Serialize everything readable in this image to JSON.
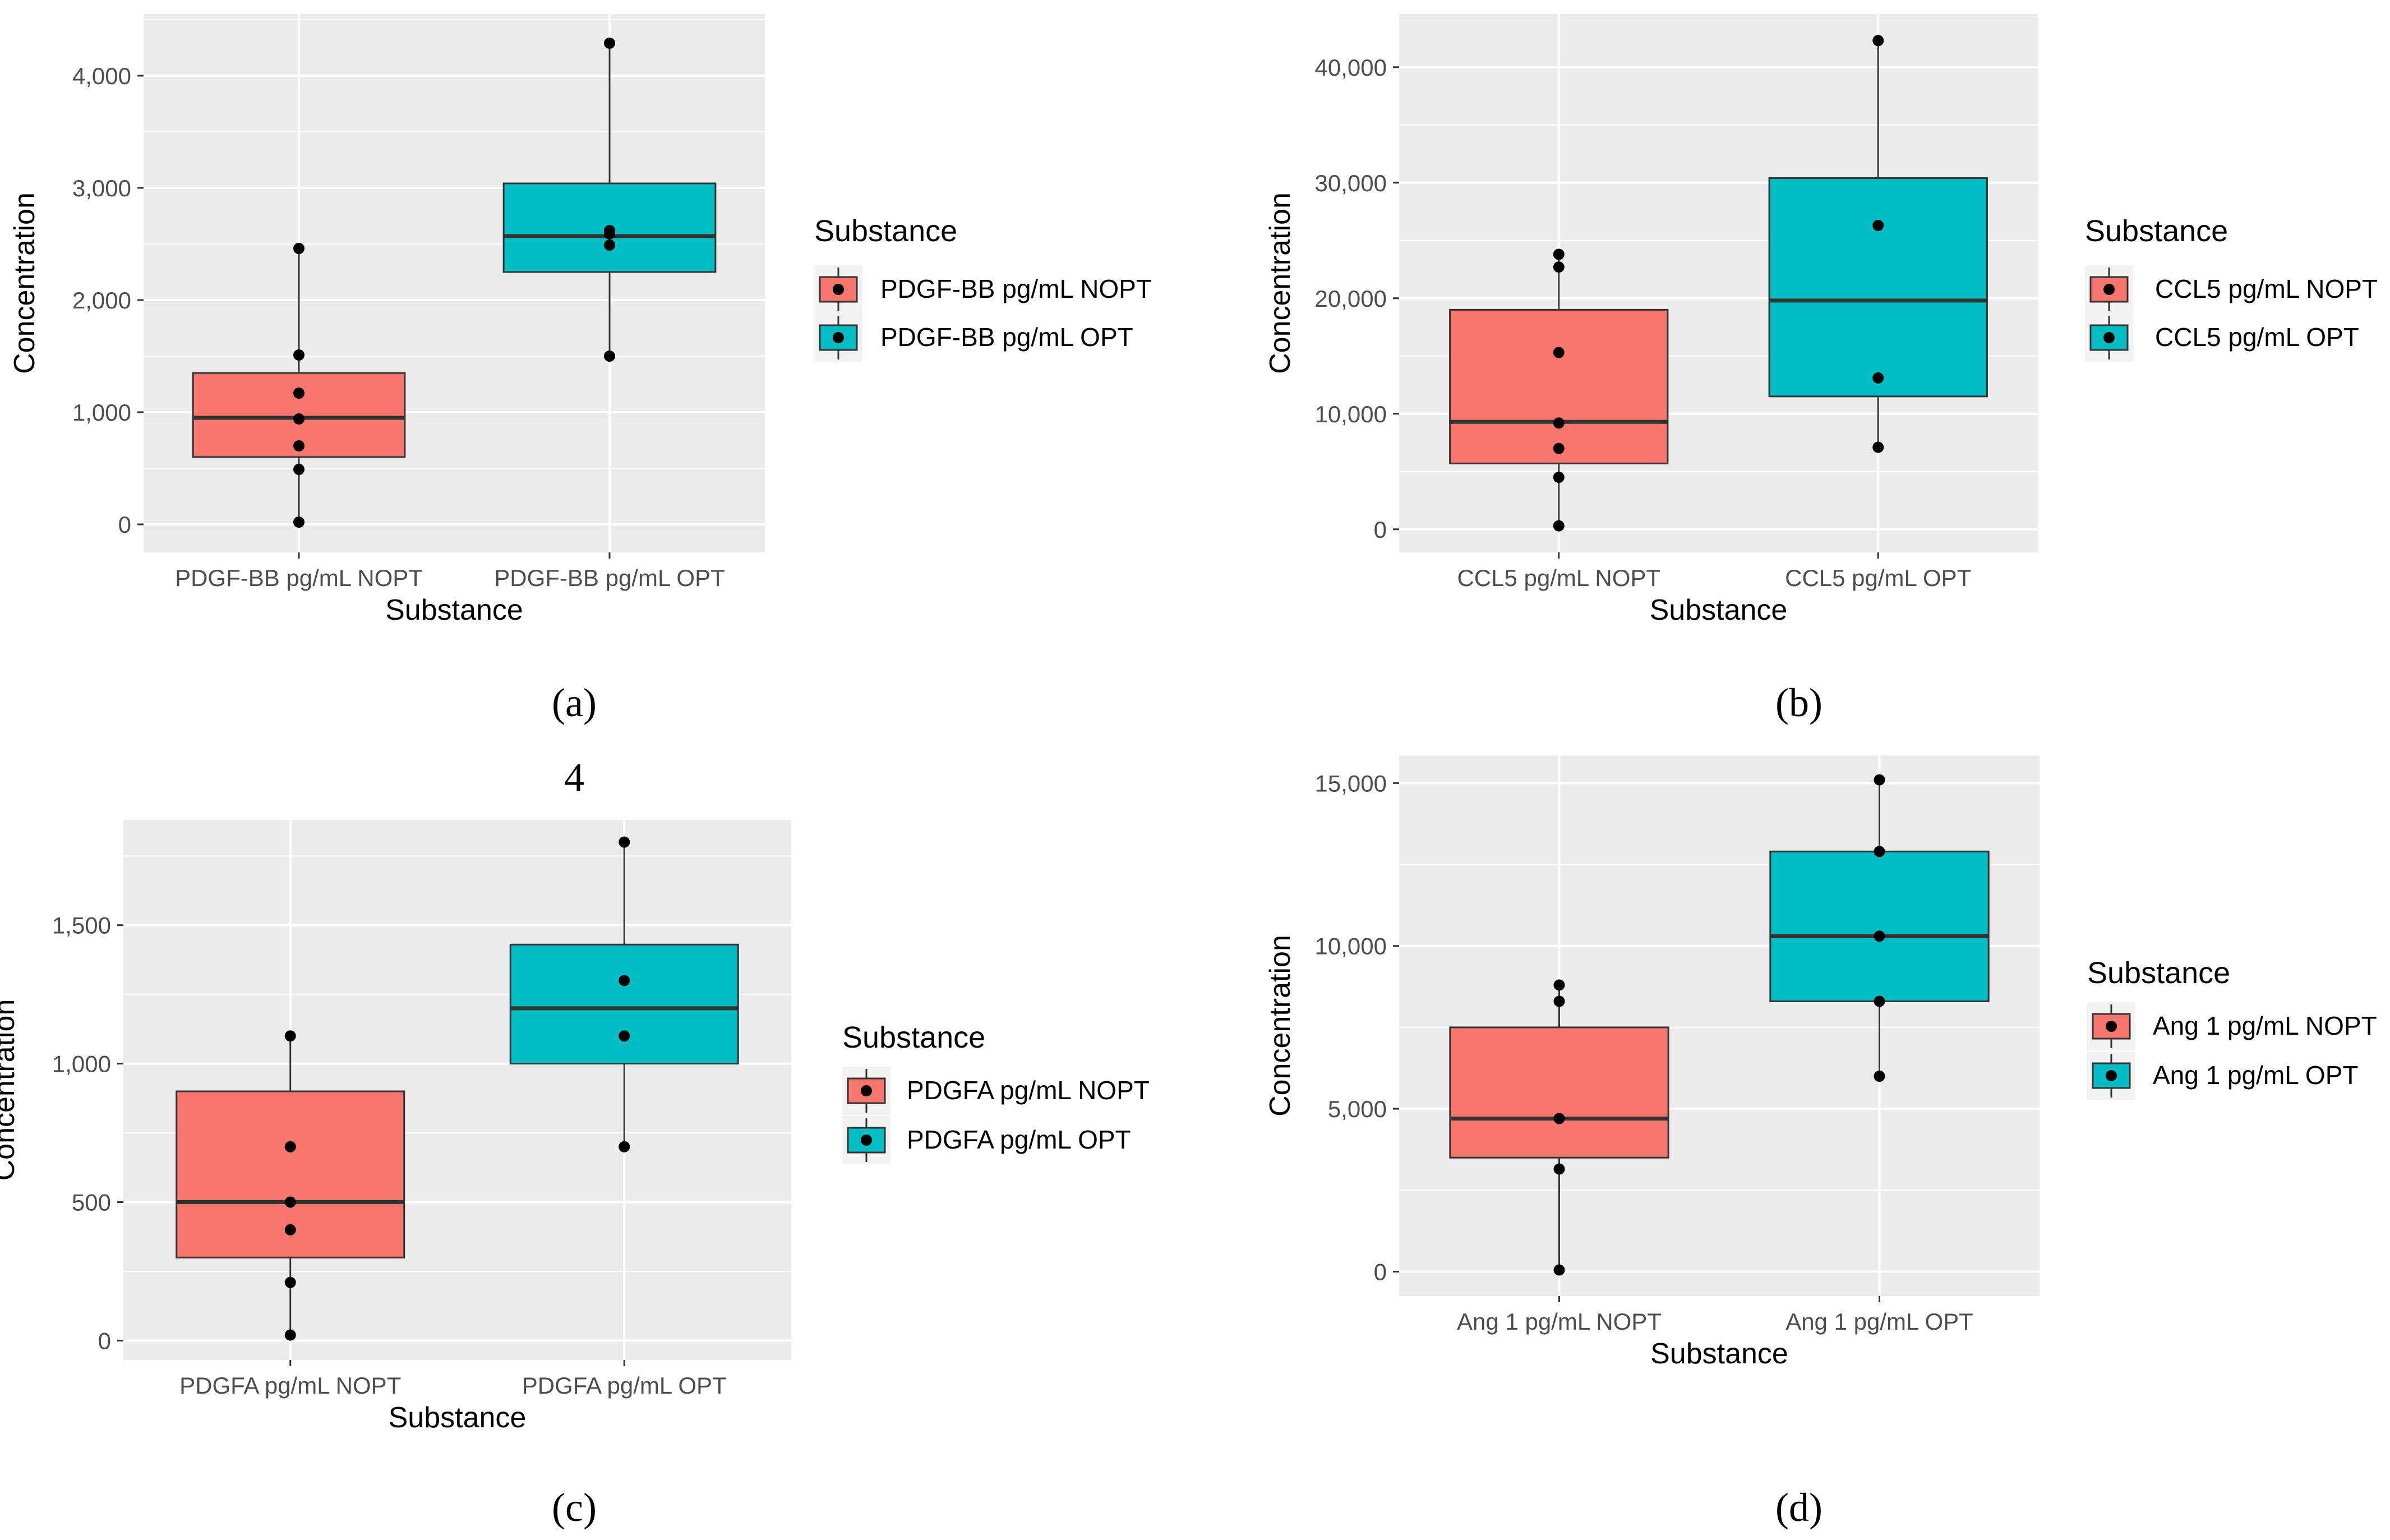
{
  "colors": {
    "panel_bg": "#EBEBEB",
    "grid": "#FFFFFF",
    "nopt": "#F8766D",
    "opt": "#00BFC4",
    "axis_text": "#4D4D4D",
    "title_text": "#000000"
  },
  "captions": {
    "a": "(a)",
    "b": "(b)",
    "c": "(c)",
    "d": "(d)",
    "stray_number": "4"
  },
  "chart_data": [
    {
      "id": "a",
      "type": "box",
      "xlabel": "Substance",
      "ylabel": "Concentration",
      "legend_title": "Substance",
      "ylim": [
        -250,
        4550
      ],
      "yticks": [
        0,
        1000,
        2000,
        3000,
        4000
      ],
      "ytick_labels": [
        "0",
        "1,000",
        "2,000",
        "3,000",
        "4,000"
      ],
      "categories": [
        "PDGF-BB pg/mL NOPT",
        "PDGF-BB pg/mL OPT"
      ],
      "boxes": [
        {
          "name": "PDGF-BB pg/mL NOPT",
          "q1": 600,
          "median": 950,
          "q3": 1350,
          "whisker_low": 0,
          "whisker_high": 2450,
          "points": [
            20,
            490,
            700,
            940,
            1170,
            1510,
            2460
          ]
        },
        {
          "name": "PDGF-BB pg/mL OPT",
          "q1": 2250,
          "median": 2570,
          "q3": 3040,
          "whisker_low": 1500,
          "whisker_high": 4290,
          "points": [
            1500,
            2490,
            2590,
            2620,
            4290
          ]
        }
      ]
    },
    {
      "id": "b",
      "type": "box",
      "xlabel": "Substance",
      "ylabel": "Concentration",
      "legend_title": "Substance",
      "ylim": [
        -2000,
        44600
      ],
      "yticks": [
        0,
        10000,
        20000,
        30000,
        40000
      ],
      "ytick_labels": [
        "0",
        "10,000",
        "20,000",
        "30,000",
        "40,000"
      ],
      "categories": [
        "CCL5 pg/mL NOPT",
        "CCL5 pg/mL OPT"
      ],
      "boxes": [
        {
          "name": "CCL5 pg/mL NOPT",
          "q1": 5700,
          "median": 9300,
          "q3": 19000,
          "whisker_low": 300,
          "whisker_high": 23800,
          "points": [
            300,
            4500,
            7000,
            9200,
            15300,
            22700,
            23800
          ]
        },
        {
          "name": "CCL5 pg/mL OPT",
          "q1": 11500,
          "median": 19800,
          "q3": 30400,
          "whisker_low": 7100,
          "whisker_high": 42300,
          "points": [
            7100,
            13100,
            26300,
            42300
          ]
        }
      ]
    },
    {
      "id": "c",
      "type": "box",
      "xlabel": "Substance",
      "ylabel": "Concentration",
      "legend_title": "Substance",
      "ylim": [
        -70,
        1880
      ],
      "yticks": [
        0,
        500,
        1000,
        1500
      ],
      "ytick_labels": [
        "0",
        "500",
        "1,000",
        "1,500"
      ],
      "categories": [
        "PDGFA pg/mL NOPT",
        "PDGFA pg/mL OPT"
      ],
      "boxes": [
        {
          "name": "PDGFA pg/mL NOPT",
          "q1": 300,
          "median": 500,
          "q3": 900,
          "whisker_low": 20,
          "whisker_high": 1100,
          "points": [
            20,
            210,
            400,
            500,
            700,
            1100
          ]
        },
        {
          "name": "PDGFA pg/mL OPT",
          "q1": 1000,
          "median": 1200,
          "q3": 1430,
          "whisker_low": 700,
          "whisker_high": 1800,
          "points": [
            700,
            1100,
            1300,
            1800
          ]
        }
      ]
    },
    {
      "id": "d",
      "type": "box",
      "xlabel": "Substance",
      "ylabel": "Concentration",
      "legend_title": "Substance",
      "ylim": [
        -750,
        15850
      ],
      "yticks": [
        0,
        5000,
        10000,
        15000
      ],
      "ytick_labels": [
        "0",
        "5,000",
        "10,000",
        "15,000"
      ],
      "categories": [
        "Ang 1 pg/mL NOPT",
        "Ang 1 pg/mL OPT"
      ],
      "boxes": [
        {
          "name": "Ang 1 pg/mL NOPT",
          "q1": 3500,
          "median": 4700,
          "q3": 7500,
          "whisker_low": 0,
          "whisker_high": 8800,
          "points": [
            50,
            3150,
            4700,
            8300,
            8800
          ]
        },
        {
          "name": "Ang 1 pg/mL OPT",
          "q1": 8300,
          "median": 10300,
          "q3": 12900,
          "whisker_low": 6000,
          "whisker_high": 15100,
          "points": [
            6000,
            8300,
            10300,
            12900,
            15100
          ]
        }
      ]
    }
  ]
}
